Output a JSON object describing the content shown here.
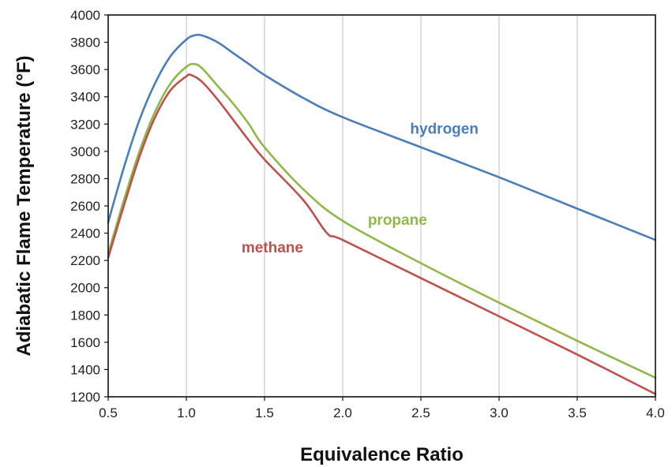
{
  "chart_data": {
    "type": "line",
    "title": "",
    "xlabel": "Equivalence Ratio",
    "ylabel": "Adiabatic Flame Temperature (°F)",
    "xlim": [
      0.5,
      4.0
    ],
    "ylim": [
      1200,
      4000
    ],
    "xticks": [
      "0.5",
      "1.0",
      "1.5",
      "2.0",
      "2.5",
      "3.0",
      "3.5",
      "4.0"
    ],
    "yticks": [
      "1200",
      "1400",
      "1600",
      "1800",
      "2000",
      "2200",
      "2400",
      "2600",
      "2800",
      "3000",
      "3200",
      "3400",
      "3600",
      "3800",
      "4000"
    ],
    "grid": "vertical",
    "legend": "inline labels",
    "series": [
      {
        "name": "hydrogen",
        "color": "#4a7ebb",
        "x": [
          0.5,
          0.6,
          0.7,
          0.8,
          0.9,
          1.0,
          1.05,
          1.1,
          1.2,
          1.3,
          1.4,
          1.5,
          1.75,
          2.0,
          2.5,
          3.0,
          3.5,
          4.0
        ],
        "y": [
          2480,
          2880,
          3230,
          3500,
          3700,
          3820,
          3850,
          3850,
          3800,
          3720,
          3640,
          3560,
          3390,
          3250,
          3030,
          2810,
          2580,
          2350
        ]
      },
      {
        "name": "propane",
        "color": "#8fb84a",
        "x": [
          0.5,
          0.6,
          0.7,
          0.8,
          0.9,
          1.0,
          1.05,
          1.1,
          1.2,
          1.3,
          1.4,
          1.5,
          1.75,
          2.0,
          2.5,
          3.0,
          3.5,
          4.0
        ],
        "y": [
          2250,
          2640,
          3000,
          3290,
          3500,
          3620,
          3640,
          3610,
          3480,
          3350,
          3200,
          3030,
          2720,
          2490,
          2180,
          1890,
          1610,
          1340
        ]
      },
      {
        "name": "methane",
        "color": "#c0504d",
        "x": [
          0.5,
          0.6,
          0.7,
          0.8,
          0.9,
          1.0,
          1.03,
          1.1,
          1.2,
          1.3,
          1.4,
          1.5,
          1.75,
          1.9,
          2.0,
          2.5,
          3.0,
          3.5,
          4.0
        ],
        "y": [
          2220,
          2600,
          2960,
          3250,
          3450,
          3550,
          3560,
          3510,
          3380,
          3230,
          3080,
          2940,
          2640,
          2400,
          2350,
          2070,
          1790,
          1510,
          1220
        ]
      }
    ],
    "annotations": [
      {
        "text": "hydrogen",
        "x": 2.65,
        "y": 3130,
        "color": "#4a7ebb"
      },
      {
        "text": "propane",
        "x": 2.35,
        "y": 2460,
        "color": "#8fb84a"
      },
      {
        "text": "methane",
        "x": 1.55,
        "y": 2260,
        "color": "#c0504d"
      }
    ]
  }
}
